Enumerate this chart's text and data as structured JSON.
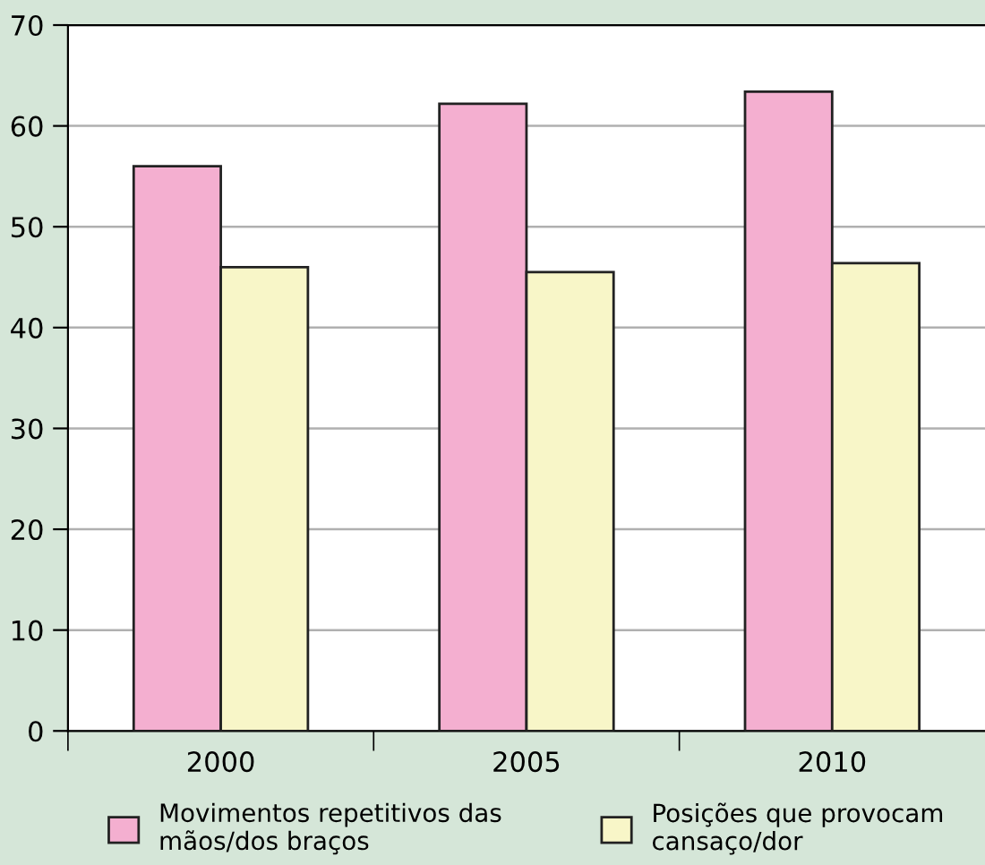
{
  "chart_data": {
    "type": "bar",
    "categories": [
      "2000",
      "2005",
      "2010"
    ],
    "series": [
      {
        "name": "Movimentos repetitivos das\nmãos/dos braços",
        "color": "#f4afd0",
        "values": [
          56,
          62.2,
          63.4
        ]
      },
      {
        "name": "Posições que provocam\ncansaço/dor",
        "color": "#f8f6c8",
        "values": [
          46,
          45.5,
          46.4
        ]
      }
    ],
    "ylim": [
      0,
      70
    ],
    "yticks": [
      0,
      10,
      20,
      30,
      40,
      50,
      60,
      70
    ],
    "grid": "y",
    "legend": "bottom"
  }
}
